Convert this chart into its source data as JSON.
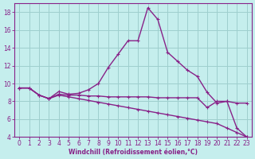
{
  "xlabel": "Windchill (Refroidissement éolien,°C)",
  "bg_color": "#c5eeed",
  "grid_color": "#9ecfce",
  "line_color": "#882288",
  "xlim": [
    -0.5,
    23.5
  ],
  "ylim": [
    4,
    19
  ],
  "yticks": [
    4,
    6,
    8,
    10,
    12,
    14,
    16,
    18
  ],
  "xticks": [
    0,
    1,
    2,
    3,
    4,
    5,
    6,
    7,
    8,
    9,
    10,
    11,
    12,
    13,
    14,
    15,
    16,
    17,
    18,
    19,
    20,
    21,
    22,
    23
  ],
  "line1_x": [
    0,
    1,
    2,
    3,
    4,
    5,
    6,
    7,
    8,
    9,
    10,
    11,
    12,
    13,
    14,
    15,
    16,
    17,
    18,
    19,
    20,
    21,
    22,
    23
  ],
  "line1_y": [
    9.5,
    9.5,
    8.7,
    8.3,
    9.1,
    8.8,
    8.9,
    9.3,
    10.0,
    11.8,
    13.3,
    14.8,
    14.8,
    18.5,
    17.2,
    13.5,
    12.5,
    11.5,
    10.8,
    9.0,
    7.8,
    8.0,
    7.8,
    7.8
  ],
  "line2_x": [
    0,
    1,
    2,
    3,
    4,
    5,
    6,
    7,
    8,
    9,
    10,
    11,
    12,
    13,
    14,
    15,
    16,
    17,
    18,
    19,
    20,
    21,
    22,
    23
  ],
  "line2_y": [
    9.5,
    9.5,
    8.7,
    8.3,
    8.8,
    8.7,
    8.7,
    8.6,
    8.6,
    8.5,
    8.5,
    8.5,
    8.5,
    8.5,
    8.4,
    8.4,
    8.4,
    8.4,
    8.4,
    7.3,
    8.0,
    8.0,
    5.0,
    4.0
  ],
  "line3_x": [
    0,
    1,
    2,
    3,
    4,
    5,
    6,
    7,
    8,
    9,
    10,
    11,
    12,
    13,
    14,
    15,
    16,
    17,
    18,
    19,
    20,
    21,
    22,
    23
  ],
  "line3_y": [
    9.5,
    9.5,
    8.7,
    8.3,
    8.7,
    8.5,
    8.3,
    8.1,
    7.9,
    7.7,
    7.5,
    7.3,
    7.1,
    6.9,
    6.7,
    6.5,
    6.3,
    6.1,
    5.9,
    5.7,
    5.5,
    5.0,
    4.5,
    4.0
  ]
}
